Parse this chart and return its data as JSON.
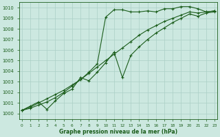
{
  "xlabel": "Graphe pression niveau de la mer (hPa)",
  "ylim": [
    999.5,
    1010.5
  ],
  "xlim": [
    -0.3,
    23.3
  ],
  "yticks": [
    1000,
    1001,
    1002,
    1003,
    1004,
    1005,
    1006,
    1007,
    1008,
    1009,
    1010
  ],
  "xticks": [
    0,
    1,
    2,
    3,
    4,
    5,
    6,
    7,
    8,
    9,
    10,
    11,
    12,
    13,
    14,
    15,
    16,
    17,
    18,
    19,
    20,
    21,
    22,
    23
  ],
  "background_color": "#cce8e0",
  "grid_color": "#aacfc5",
  "line_color": "#1a5c1a",
  "line1": {
    "x": [
      0,
      1,
      2,
      3,
      4,
      5,
      6,
      7,
      8,
      9,
      10,
      11,
      12,
      13,
      14,
      15,
      16,
      17,
      18,
      19,
      20,
      21,
      22,
      23
    ],
    "y": [
      1000.3,
      1000.5,
      1000.8,
      1001.1,
      1001.5,
      1002.0,
      1002.6,
      1003.2,
      1003.9,
      1004.7,
      1009.1,
      1009.8,
      1009.8,
      1009.6,
      1009.6,
      1009.7,
      1009.6,
      1009.9,
      1009.9,
      1010.1,
      1010.1,
      1009.9,
      1009.6,
      1009.7
    ]
  },
  "line2": {
    "x": [
      0,
      1,
      2,
      3,
      4,
      5,
      6,
      7,
      8,
      9,
      10,
      11,
      12,
      13,
      14,
      15,
      16,
      17,
      18,
      19,
      20,
      21,
      22,
      23
    ],
    "y": [
      1000.3,
      1000.6,
      1001.0,
      1001.4,
      1001.8,
      1002.2,
      1002.7,
      1003.2,
      1003.8,
      1004.4,
      1005.0,
      1005.6,
      1006.2,
      1006.8,
      1007.4,
      1007.9,
      1008.3,
      1008.7,
      1009.0,
      1009.3,
      1009.6,
      1009.5,
      1009.6,
      1009.7
    ]
  },
  "line3": {
    "x": [
      0,
      1,
      2,
      3,
      4,
      5,
      6,
      7,
      8,
      9,
      10,
      11,
      12,
      13,
      14,
      15,
      16,
      17,
      18,
      19,
      20,
      21,
      22,
      23
    ],
    "y": [
      1000.3,
      1000.7,
      1001.1,
      1000.4,
      1001.2,
      1001.9,
      1002.3,
      1003.4,
      1003.1,
      1003.9,
      1004.8,
      1005.8,
      1003.4,
      1005.5,
      1006.3,
      1007.0,
      1007.6,
      1008.1,
      1008.6,
      1009.0,
      1009.4,
      1009.2,
      1009.5,
      1009.6
    ]
  }
}
